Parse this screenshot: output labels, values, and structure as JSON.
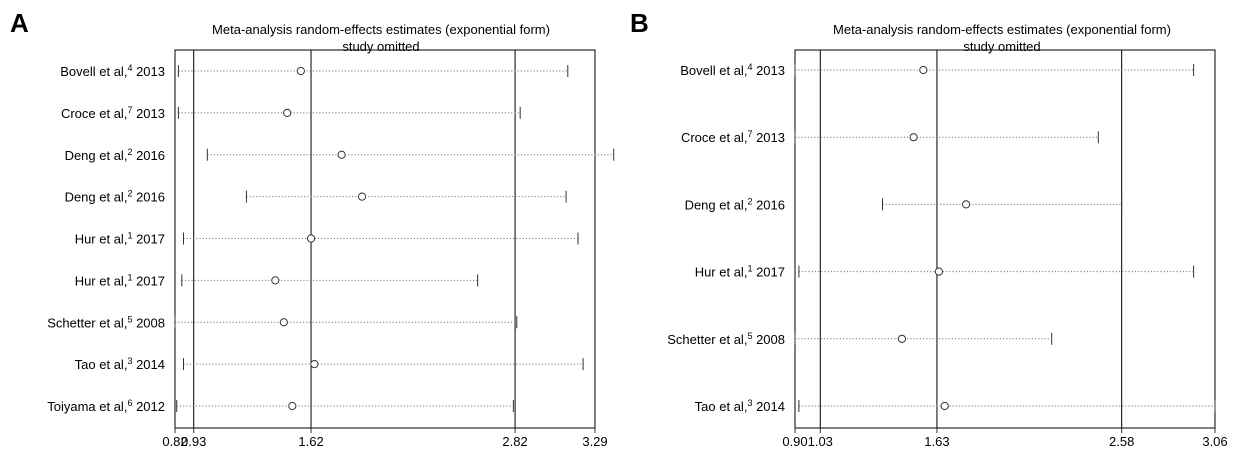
{
  "chart_data": [
    {
      "type": "forest",
      "panel": "A",
      "title_line1": "Meta-analysis random-effects estimates (exponential form)",
      "title_line2": "study omitted",
      "xlim": [
        0.82,
        3.29
      ],
      "xticks": [
        {
          "value": 0.82,
          "label": "0.82"
        },
        {
          "value": 0.93,
          "label": "0.93"
        },
        {
          "value": 1.62,
          "label": "1.62"
        },
        {
          "value": 2.82,
          "label": "2.82"
        },
        {
          "value": 3.29,
          "label": "3.29"
        }
      ],
      "reference_lines": [
        0.93,
        1.62,
        2.82
      ],
      "studies": [
        {
          "name": "Bovell et al,",
          "ref": "4",
          "year": "2013",
          "estimate": 1.56,
          "lower": 0.84,
          "upper": 3.13
        },
        {
          "name": "Croce et al,",
          "ref": "7",
          "year": "2013",
          "estimate": 1.48,
          "lower": 0.84,
          "upper": 2.85
        },
        {
          "name": "Deng et al,",
          "ref": "2",
          "year": "2016",
          "estimate": 1.8,
          "lower": 1.01,
          "upper": 3.4
        },
        {
          "name": "Deng et al,",
          "ref": "2",
          "year": "2016",
          "estimate": 1.92,
          "lower": 1.24,
          "upper": 3.12
        },
        {
          "name": "Hur et al,",
          "ref": "1",
          "year": "2017",
          "estimate": 1.62,
          "lower": 0.87,
          "upper": 3.19
        },
        {
          "name": "Hur et al,",
          "ref": "1",
          "year": "2017",
          "estimate": 1.41,
          "lower": 0.86,
          "upper": 2.6
        },
        {
          "name": "Schetter et al,",
          "ref": "5",
          "year": "2008",
          "estimate": 1.46,
          "lower": 0.82,
          "upper": 2.83
        },
        {
          "name": "Tao et al,",
          "ref": "3",
          "year": "2014",
          "estimate": 1.64,
          "lower": 0.87,
          "upper": 3.22
        },
        {
          "name": "Toiyama et al,",
          "ref": "6",
          "year": "2012",
          "estimate": 1.51,
          "lower": 0.83,
          "upper": 2.81
        }
      ]
    },
    {
      "type": "forest",
      "panel": "B",
      "title_line1": "Meta-analysis random-effects estimates (exponential form)",
      "title_line2": "study omitted",
      "xlim": [
        0.9,
        3.06
      ],
      "xticks": [
        {
          "value": 0.9,
          "label": "0.90"
        },
        {
          "value": 1.03,
          "label": "1.03"
        },
        {
          "value": 1.63,
          "label": "1.63"
        },
        {
          "value": 2.58,
          "label": "2.58"
        },
        {
          "value": 3.06,
          "label": "3.06"
        }
      ],
      "reference_lines": [
        1.03,
        1.63,
        2.58
      ],
      "studies": [
        {
          "name": "Bovell et al,",
          "ref": "4",
          "year": "2013",
          "estimate": 1.56,
          "lower": 0.9,
          "upper": 2.95
        },
        {
          "name": "Croce et al,",
          "ref": "7",
          "year": "2013",
          "estimate": 1.51,
          "lower": 0.9,
          "upper": 2.46
        },
        {
          "name": "Deng et al,",
          "ref": "2",
          "year": "2016",
          "estimate": 1.78,
          "lower": 1.35,
          "upper": 2.58
        },
        {
          "name": "Hur et al,",
          "ref": "1",
          "year": "2017",
          "estimate": 1.64,
          "lower": 0.92,
          "upper": 2.95
        },
        {
          "name": "Schetter et al,",
          "ref": "5",
          "year": "2008",
          "estimate": 1.45,
          "lower": 0.9,
          "upper": 2.22
        },
        {
          "name": "Tao et al,",
          "ref": "3",
          "year": "2014",
          "estimate": 1.67,
          "lower": 0.92,
          "upper": 3.06
        }
      ]
    }
  ]
}
